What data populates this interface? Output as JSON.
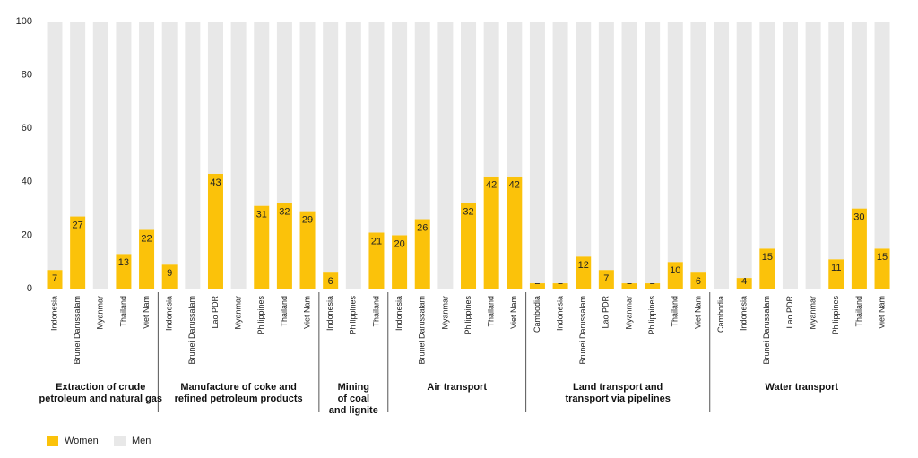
{
  "chart_data": {
    "type": "stacked-bar",
    "series": [
      {
        "name": "Women",
        "color": "#fbc20a"
      },
      {
        "name": "Men",
        "color": "#e8e8e8"
      }
    ],
    "ylim": [
      0,
      100
    ],
    "yticks": [
      0,
      20,
      40,
      60,
      80,
      100
    ],
    "groups": [
      {
        "name": "Extraction of crude\npetroleum and natural gas",
        "categories": [
          "Indonesia",
          "Brunei Darussalam",
          "Myanmar",
          "Thailand",
          "Viet Nam"
        ],
        "series": [
          {
            "values": [
              7,
              27,
              0,
              13,
              22
            ]
          },
          {
            "values": [
              93,
              73,
              100,
              87,
              78
            ]
          }
        ]
      },
      {
        "name": "Manufacture of coke and\nrefined petroleum products",
        "categories": [
          "Indonesia",
          "Brunei Darussalam",
          "Lao PDR",
          "Myanmar",
          "Philippines",
          "Thailand",
          "Viet Nam"
        ],
        "series": [
          {
            "values": [
              9,
              0,
              43,
              0,
              31,
              32,
              29
            ]
          },
          {
            "values": [
              91,
              100,
              57,
              100,
              69,
              68,
              71
            ]
          }
        ]
      },
      {
        "name": "Mining\nof coal\nand lignite",
        "categories": [
          "Indonesia",
          "Philippines",
          "Thailand"
        ],
        "series": [
          {
            "values": [
              6,
              0,
              21
            ]
          },
          {
            "values": [
              94,
              100,
              79
            ]
          }
        ]
      },
      {
        "name": "Air transport",
        "categories": [
          "Indonesia",
          "Brunei Darussalam",
          "Myanmar",
          "Philippines",
          "Thailand",
          "Viet Nam"
        ],
        "series": [
          {
            "values": [
              20,
              26,
              0,
              32,
              42,
              42
            ]
          },
          {
            "values": [
              80,
              74,
              100,
              68,
              58,
              58
            ]
          }
        ]
      },
      {
        "name": "Land transport and\ntransport via pipelines",
        "categories": [
          "Cambodia",
          "Indonesia",
          "Brunei Darussalam",
          "Lao PDR",
          "Myanmar",
          "Philippines",
          "Thailand",
          "Viet Nam"
        ],
        "series": [
          {
            "values": [
              2,
              2,
              12,
              7,
              2,
              2,
              10,
              6
            ]
          },
          {
            "values": [
              98,
              98,
              88,
              93,
              98,
              98,
              90,
              94
            ]
          }
        ]
      },
      {
        "name": "Water transport",
        "categories": [
          "Cambodia",
          "Indonesia",
          "Brunei Darussalam",
          "Lao PDR",
          "Myanmar",
          "Philippines",
          "Thailand",
          "Viet Nam"
        ],
        "series": [
          {
            "values": [
              0,
              4,
              15,
              0,
              0,
              11,
              30,
              15
            ]
          },
          {
            "values": [
              100,
              96,
              85,
              100,
              100,
              89,
              70,
              85
            ]
          }
        ]
      }
    ]
  }
}
